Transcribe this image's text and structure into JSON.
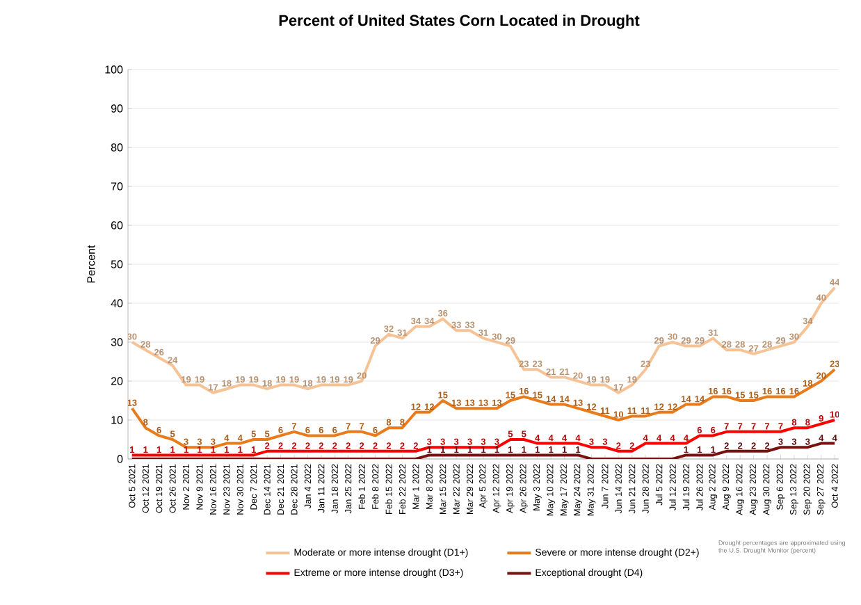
{
  "chart_data": {
    "type": "line",
    "title": "Percent of United States Corn Located in Drought",
    "ylabel": "Percent",
    "categories": [
      "Oct 5 2021",
      "Oct 12 2021",
      "Oct 19 2021",
      "Oct 26 2021",
      "Nov 2 2021",
      "Nov 9 2021",
      "Nov 16 2021",
      "Nov 23 2021",
      "Nov 30 2021",
      "Dec 7 2021",
      "Dec 14 2021",
      "Dec 21 2021",
      "Dec 28 2021",
      "Jan 4 2022",
      "Jan 11 2022",
      "Jan 18 2022",
      "Jan 25 2022",
      "Feb 1 2022",
      "Feb 8 2022",
      "Feb 15 2022",
      "Feb 22 2022",
      "Mar 1 2022",
      "Mar 8 2022",
      "Mar 15 2022",
      "Mar 22 2022",
      "Mar 29 2022",
      "Apr 5 2022",
      "Apr 12 2022",
      "Apr 19 2022",
      "Apr 26 2022",
      "May 3 2022",
      "May 10 2022",
      "May 17 2022",
      "May 24 2022",
      "May 31 2022",
      "Jun 7 2022",
      "Jun 14 2022",
      "Jun 21 2022",
      "Jun 28 2022",
      "Jul 5 2022",
      "Jul 12 2022",
      "Jul 19 2022",
      "Jul 26 2022",
      "Aug 2 2022",
      "Aug 9 2022",
      "Aug 16 2022",
      "Aug 23 2022",
      "Aug 30 2022",
      "Sep 6 2022",
      "Sep 13 2022",
      "Sep 20 2022",
      "Sep 27 2022",
      "Oct 4 2022"
    ],
    "series": [
      {
        "name": "Moderate or more intense drought (D1+)",
        "color": "#f5c396",
        "values": [
          30,
          28,
          26,
          24,
          19,
          19,
          17,
          18,
          19,
          19,
          18,
          19,
          19,
          18,
          19,
          19,
          19,
          20,
          29,
          32,
          31,
          34,
          34,
          36,
          33,
          33,
          31,
          30,
          29,
          23,
          23,
          21,
          21,
          20,
          19,
          19,
          17,
          19,
          23,
          29,
          30,
          29,
          29,
          31,
          28,
          28,
          27,
          28,
          29,
          30,
          34,
          40,
          44
        ],
        "value_labels": [
          "30",
          "28",
          "26",
          "24",
          "19",
          "19",
          "17",
          "18",
          "19",
          "19",
          "18",
          "19",
          "19",
          "18",
          "19",
          "19",
          "19",
          "20",
          "29",
          "32",
          "31",
          "34",
          "34",
          "36",
          "33",
          "33",
          "31",
          "30",
          "29",
          "23",
          "23",
          "21",
          "21",
          "20",
          "19",
          "19",
          "17",
          "19",
          "23",
          "29",
          "30",
          "29",
          "29",
          "31",
          "28",
          "28",
          "27",
          "28",
          "29",
          "30",
          "34",
          "40",
          "44"
        ]
      },
      {
        "name": "Severe or more intense drought (D2+)",
        "color": "#e87b1c",
        "values": [
          13,
          8,
          6,
          5,
          3,
          3,
          3,
          4,
          4,
          5,
          5,
          6,
          7,
          6,
          6,
          6,
          7,
          7,
          6,
          8,
          8,
          12,
          12,
          15,
          13,
          13,
          13,
          13,
          15,
          16,
          15,
          14,
          14,
          13,
          12,
          11,
          10,
          11,
          11,
          12,
          12,
          14,
          14,
          16,
          16,
          15,
          15,
          16,
          16,
          16,
          18,
          20,
          23
        ],
        "value_labels": [
          "13",
          "8",
          "6",
          "5",
          "3",
          "3",
          "3",
          "4",
          "4",
          "5",
          "5",
          "6",
          "7",
          "6",
          "6",
          "6",
          "7",
          "7",
          "6",
          "8",
          "8",
          "12",
          "12",
          "15",
          "13",
          "13",
          "13",
          "13",
          "15",
          "16",
          "15",
          "14",
          "14",
          "13",
          "12",
          "11",
          "10",
          "11",
          "11",
          "12",
          "12",
          "14",
          "14",
          "16",
          "16",
          "15",
          "15",
          "16",
          "16",
          "16",
          "18",
          "20",
          "23"
        ]
      },
      {
        "name": "Extreme or more intense drought (D3+)",
        "color": "#ff0000",
        "values": [
          1,
          1,
          1,
          1,
          1,
          1,
          1,
          1,
          1,
          1,
          2,
          2,
          2,
          2,
          2,
          2,
          2,
          2,
          2,
          2,
          2,
          2,
          3,
          3,
          3,
          3,
          3,
          3,
          5,
          5,
          4,
          4,
          4,
          4,
          3,
          3,
          2,
          2,
          4,
          4,
          4,
          4,
          6,
          6,
          7,
          7,
          7,
          7,
          7,
          8,
          8,
          9,
          10
        ],
        "value_labels": [
          "1",
          "1",
          "1",
          "1",
          "1",
          "1",
          "1",
          "1",
          "1",
          "1",
          "2",
          "2",
          "2",
          "2",
          "2",
          "2",
          "2",
          "2",
          "2",
          "2",
          "2",
          "2",
          "3",
          "3",
          "3",
          "3",
          "3",
          "3",
          "5",
          "5",
          "4",
          "4",
          "4",
          "4",
          "3",
          "3",
          "2",
          "2",
          "4",
          "4",
          "4",
          "4",
          "6",
          "6",
          "7",
          "7",
          "7",
          "7",
          "7",
          "8",
          "8",
          "9",
          "10"
        ]
      },
      {
        "name": "Exceptional drought (D4)",
        "color": "#7a1010",
        "values": [
          0,
          0,
          0,
          0,
          0,
          0,
          0,
          0,
          0,
          0,
          0,
          0,
          0,
          0,
          0,
          0,
          0,
          0,
          0,
          0,
          0,
          0,
          1,
          1,
          1,
          1,
          1,
          1,
          1,
          1,
          1,
          1,
          1,
          1,
          0,
          0,
          0,
          0,
          0,
          0,
          0,
          1,
          1,
          1,
          2,
          2,
          2,
          2,
          3,
          3,
          3,
          4,
          4
        ],
        "value_labels": [
          null,
          null,
          null,
          null,
          null,
          null,
          null,
          null,
          null,
          null,
          null,
          null,
          null,
          null,
          null,
          null,
          null,
          null,
          null,
          null,
          null,
          null,
          "1",
          "1",
          "1",
          "1",
          "1",
          "1",
          "1",
          "1",
          "1",
          "1",
          "1",
          "1",
          null,
          null,
          null,
          null,
          null,
          null,
          null,
          "1",
          "1",
          "1",
          "2",
          "2",
          "2",
          "2",
          "3",
          "3",
          "3",
          "4",
          "4"
        ]
      }
    ],
    "ylim": [
      0,
      100
    ],
    "yticks": [
      0,
      10,
      20,
      30,
      40,
      50,
      60,
      70,
      80,
      90,
      100
    ],
    "grid": "y",
    "legend": "bottom",
    "marker": "none",
    "line_style": "solid",
    "annotations": [
      "Drought percentages are approximated using the U.S. Drought Monitor (percent)"
    ]
  }
}
